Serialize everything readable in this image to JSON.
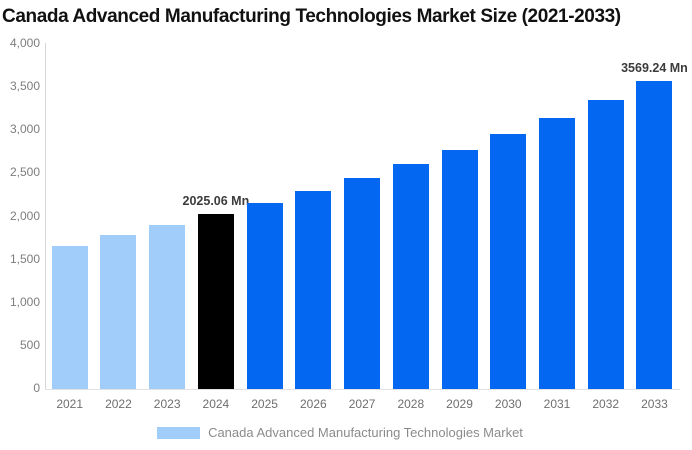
{
  "title": "Canada Advanced Manufacturing Technologies Market Size (2021-2033)",
  "legend": {
    "label": "Canada Advanced Manufacturing Technologies Market",
    "swatch_color": "#a0cdfa"
  },
  "colors": {
    "historical": "#a0cdfa",
    "base": "#000000",
    "forecast": "#0467f2"
  },
  "chart_data": {
    "type": "bar",
    "title": "Canada Advanced Manufacturing Technologies Market Size (2021-2033)",
    "xlabel": "",
    "ylabel": "",
    "ylim": [
      0,
      4000
    ],
    "grid": false,
    "legend_position": "bottom",
    "unit": "Mn",
    "categories": [
      "2021",
      "2022",
      "2023",
      "2024",
      "2025",
      "2026",
      "2027",
      "2028",
      "2029",
      "2030",
      "2031",
      "2032",
      "2033"
    ],
    "values": [
      1655,
      1785,
      1895,
      2025.06,
      2150,
      2290,
      2440,
      2600,
      2770,
      2950,
      3140,
      3350,
      3569.24
    ],
    "points": [
      {
        "year": "2021",
        "value": 1655,
        "role": "historical"
      },
      {
        "year": "2022",
        "value": 1785,
        "role": "historical"
      },
      {
        "year": "2023",
        "value": 1895,
        "role": "historical"
      },
      {
        "year": "2024",
        "value": 2025.06,
        "role": "base",
        "label": "2025.06 Mn"
      },
      {
        "year": "2025",
        "value": 2150,
        "role": "forecast"
      },
      {
        "year": "2026",
        "value": 2290,
        "role": "forecast"
      },
      {
        "year": "2027",
        "value": 2440,
        "role": "forecast"
      },
      {
        "year": "2028",
        "value": 2600,
        "role": "forecast"
      },
      {
        "year": "2029",
        "value": 2770,
        "role": "forecast"
      },
      {
        "year": "2030",
        "value": 2950,
        "role": "forecast"
      },
      {
        "year": "2031",
        "value": 3140,
        "role": "forecast"
      },
      {
        "year": "2032",
        "value": 3350,
        "role": "forecast"
      },
      {
        "year": "2033",
        "value": 3569.24,
        "role": "forecast",
        "label": "3569.24 Mn"
      }
    ],
    "y_ticks": [
      {
        "value": 0,
        "label": "0"
      },
      {
        "value": 500,
        "label": "500"
      },
      {
        "value": 1000,
        "label": "1,000"
      },
      {
        "value": 1500,
        "label": "1,500"
      },
      {
        "value": 2000,
        "label": "2,000"
      },
      {
        "value": 2500,
        "label": "2,500"
      },
      {
        "value": 3000,
        "label": "3,000"
      },
      {
        "value": 3500,
        "label": "3,500"
      },
      {
        "value": 4000,
        "label": "4,000"
      }
    ]
  }
}
